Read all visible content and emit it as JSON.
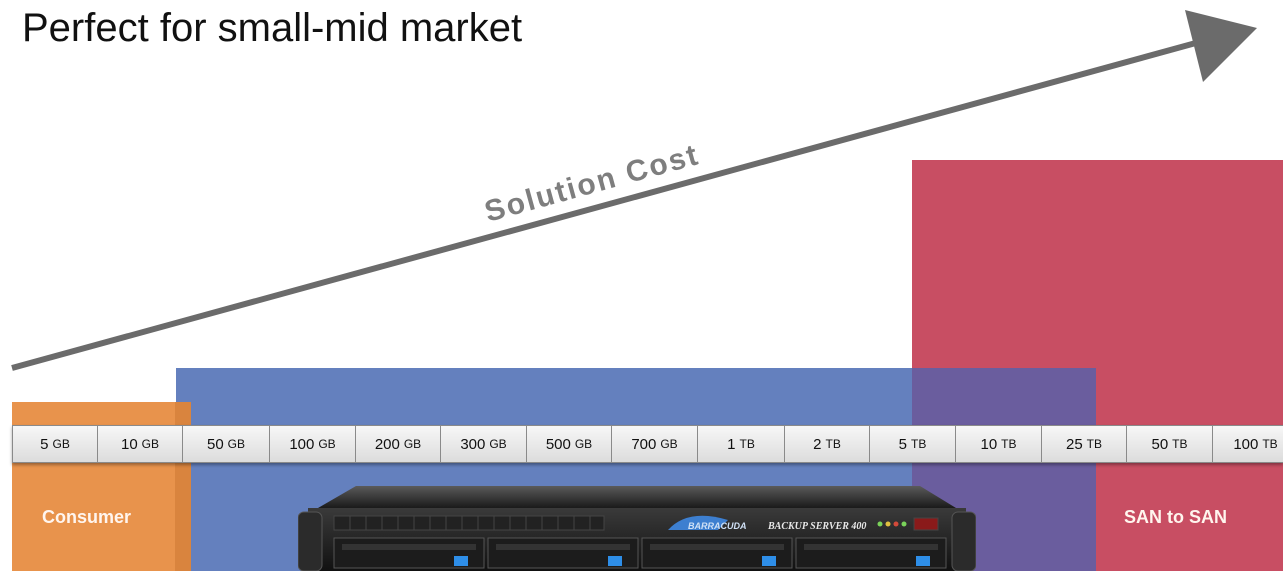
{
  "title": "Perfect for small-mid market",
  "arrow_label": "Solution Cost",
  "bands": {
    "consumer": {
      "label": "Consumer",
      "color": "#e8934c"
    },
    "mid": {
      "color": "#6480be"
    },
    "san": {
      "label": "SAN to SAN",
      "color": "#c84e63"
    }
  },
  "scale": [
    {
      "num": "5",
      "unit": "GB"
    },
    {
      "num": "10",
      "unit": "GB"
    },
    {
      "num": "50",
      "unit": "GB"
    },
    {
      "num": "100",
      "unit": "GB"
    },
    {
      "num": "200",
      "unit": "GB"
    },
    {
      "num": "300",
      "unit": "GB"
    },
    {
      "num": "500",
      "unit": "GB"
    },
    {
      "num": "700",
      "unit": "GB"
    },
    {
      "num": "1",
      "unit": "TB"
    },
    {
      "num": "2",
      "unit": "TB"
    },
    {
      "num": "5",
      "unit": "TB"
    },
    {
      "num": "10",
      "unit": "TB"
    },
    {
      "num": "25",
      "unit": "TB"
    },
    {
      "num": "50",
      "unit": "TB"
    },
    {
      "num": "100",
      "unit": "TB"
    }
  ],
  "server": {
    "brand": "BARRACUDA",
    "model": "BACKUP SERVER 400",
    "icon": "server-appliance-icon"
  }
}
